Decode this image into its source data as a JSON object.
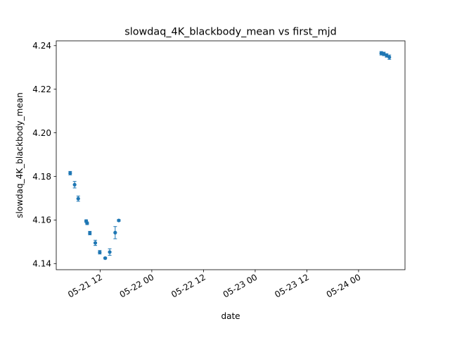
{
  "chart_data": {
    "type": "scatter",
    "title": "slowdaq_4K_blackbody_mean vs first_mjd",
    "xlabel": "date",
    "ylabel": "slowdaq_4K_blackbody_mean",
    "x_axis_type": "datetime",
    "xlim": [
      "2025-05-21T01:49",
      "2025-05-24T10:47"
    ],
    "ylim": [
      4.1372,
      4.2422
    ],
    "x_ticks": [
      {
        "value": "2025-05-21T12:00",
        "label": "05-21 12"
      },
      {
        "value": "2025-05-22T00:00",
        "label": "05-22 00"
      },
      {
        "value": "2025-05-22T12:00",
        "label": "05-22 12"
      },
      {
        "value": "2025-05-23T00:00",
        "label": "05-23 00"
      },
      {
        "value": "2025-05-23T12:00",
        "label": "05-23 12"
      },
      {
        "value": "2025-05-24T00:00",
        "label": "05-24 00"
      }
    ],
    "y_ticks": [
      {
        "value": 4.14,
        "label": "4.14"
      },
      {
        "value": 4.16,
        "label": "4.16"
      },
      {
        "value": 4.18,
        "label": "4.18"
      },
      {
        "value": 4.2,
        "label": "4.20"
      },
      {
        "value": 4.22,
        "label": "4.22"
      },
      {
        "value": 4.24,
        "label": "4.24"
      }
    ],
    "grid": false,
    "marker_color": "#1f77b4",
    "series": [
      {
        "points": [
          {
            "x": "2025-05-21T05:03",
            "y": 4.1815,
            "err": 0.0008
          },
          {
            "x": "2025-05-21T06:05",
            "y": 4.1762,
            "err": 0.0015
          },
          {
            "x": "2025-05-21T06:55",
            "y": 4.1698,
            "err": 0.0012
          },
          {
            "x": "2025-05-21T08:46",
            "y": 4.1595,
            "err": 0.0006
          },
          {
            "x": "2025-05-21T08:59",
            "y": 4.1585,
            "err": 0.0006
          },
          {
            "x": "2025-05-21T09:37",
            "y": 4.154,
            "err": 0.0008
          },
          {
            "x": "2025-05-21T10:53",
            "y": 4.1495,
            "err": 0.0012
          },
          {
            "x": "2025-05-21T11:55",
            "y": 4.1452,
            "err": 0.0008
          },
          {
            "x": "2025-05-21T13:11",
            "y": 4.1425,
            "err": 0.0004
          },
          {
            "x": "2025-05-21T14:14",
            "y": 4.1453,
            "err": 0.0015
          },
          {
            "x": "2025-05-21T15:30",
            "y": 4.1542,
            "err": 0.0028
          },
          {
            "x": "2025-05-21T16:20",
            "y": 4.1598,
            "err": 0.0004
          },
          {
            "x": "2025-05-24T05:16",
            "y": 4.2365,
            "err": 0.0008
          },
          {
            "x": "2025-05-24T05:53",
            "y": 4.2362,
            "err": 0.0008
          },
          {
            "x": "2025-05-24T06:31",
            "y": 4.2355,
            "err": 0.0008
          },
          {
            "x": "2025-05-24T07:09",
            "y": 4.2347,
            "err": 0.001
          }
        ]
      }
    ]
  }
}
